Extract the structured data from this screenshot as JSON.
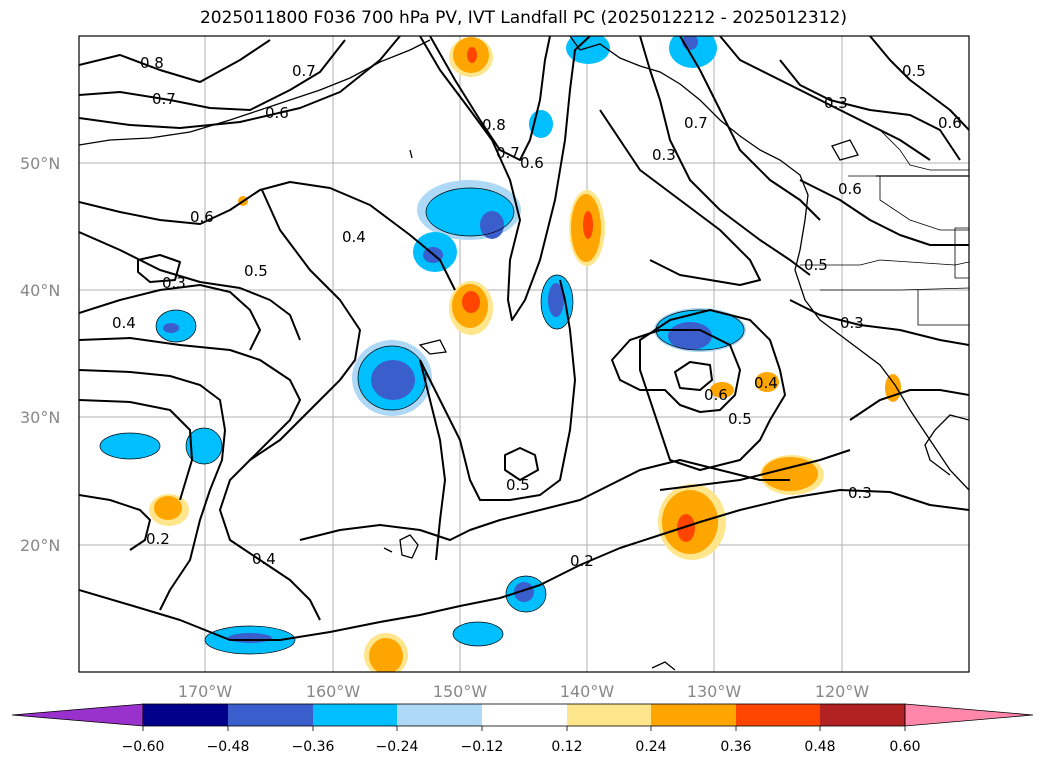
{
  "title": "2025011800 F036 700 hPa PV, IVT Landfall PC (2025012212 - 2025012312)",
  "lat_labels": [
    "50°N",
    "40°N",
    "30°N",
    "20°N"
  ],
  "lon_labels": [
    "170°W",
    "160°W",
    "150°W",
    "140°W",
    "130°W",
    "120°W"
  ],
  "contour_labels": [
    "0.8",
    "0.7",
    "0.7",
    "0.6",
    "0.6",
    "0.4",
    "0.5",
    "0.3",
    "0.4",
    "0.8",
    "0.7",
    "0.6",
    "0.3",
    "0.7",
    "0.5",
    "0.6",
    "0.6",
    "0.3",
    "0.5",
    "0.3",
    "0.6",
    "0.5",
    "0.4",
    "0.3",
    "0.5",
    "0.2",
    "0.4",
    "0.2"
  ],
  "colorbar": {
    "ticks": [
      "−0.60",
      "−0.48",
      "−0.36",
      "−0.24",
      "−0.12",
      "0.12",
      "0.24",
      "0.36",
      "0.48",
      "0.60"
    ],
    "colors": [
      "#9932cc",
      "#00008b",
      "#3a5fcd",
      "#00bfff",
      "#add8f6",
      "#ffffff",
      "#ffe68c",
      "#ffa500",
      "#ff4500",
      "#b22222",
      "#ff88aa"
    ]
  }
}
